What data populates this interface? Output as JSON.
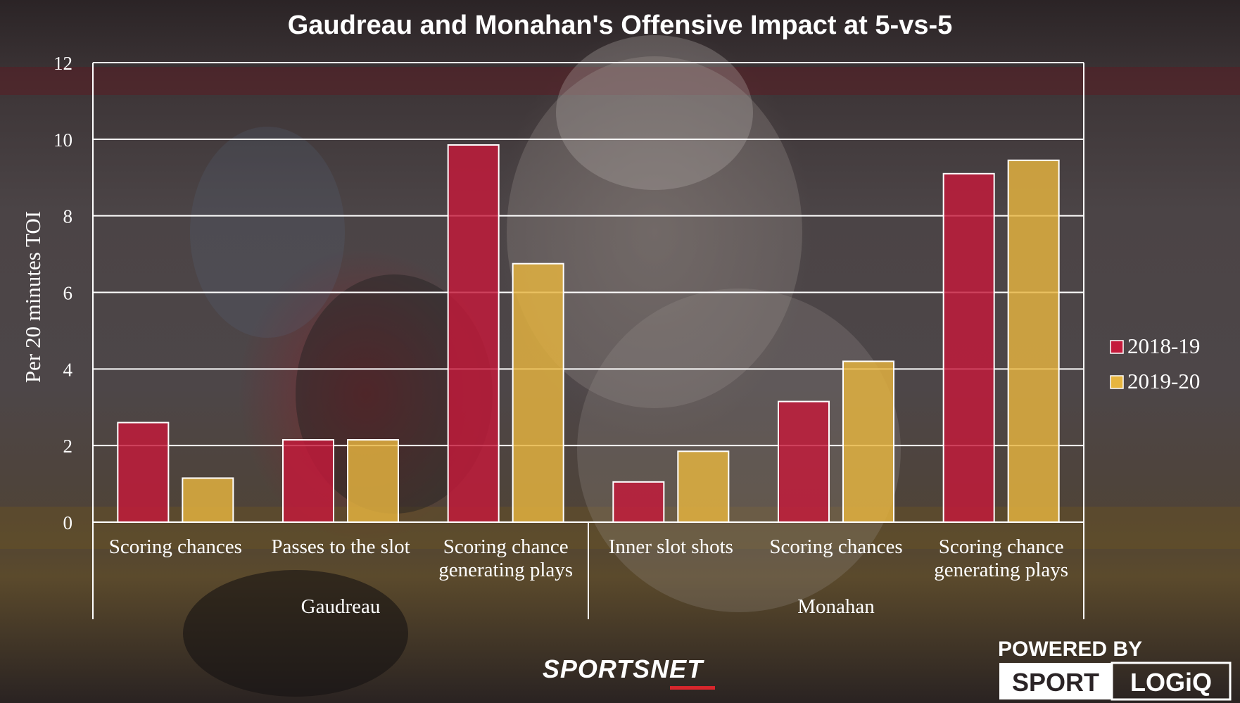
{
  "colors": {
    "series_2018": "#c41a3b",
    "series_2019": "#e7b53f",
    "grid": "#ffffff",
    "text": "#ffffff"
  },
  "branding": {
    "sportsnet": "SPORTSNET",
    "powered_by": "POWERED BY",
    "logo_left": "SPORT",
    "logo_right": "LOGiQ"
  },
  "chart_data": {
    "type": "bar",
    "title": "Gaudreau and Monahan's Offensive Impact at 5-vs-5",
    "ylabel": "Per 20 minutes TOI",
    "xlabel": "",
    "ylim": [
      0,
      12
    ],
    "yticks": [
      0,
      2,
      4,
      6,
      8,
      10,
      12
    ],
    "grid": true,
    "legend_position": "right",
    "categories": [
      [
        "Scoring chances"
      ],
      [
        "Passes to the slot"
      ],
      [
        "Scoring chance",
        "generating plays"
      ],
      [
        "Inner slot shots"
      ],
      [
        "Scoring chances"
      ],
      [
        "Scoring chance",
        "generating plays"
      ]
    ],
    "groups": [
      {
        "label": "Gaudreau",
        "count": 3
      },
      {
        "label": "Monahan",
        "count": 3
      }
    ],
    "series": [
      {
        "name": "2018-19",
        "values": [
          2.6,
          2.15,
          9.85,
          1.05,
          3.15,
          9.1
        ]
      },
      {
        "name": "2019-20",
        "values": [
          1.15,
          2.15,
          6.75,
          1.85,
          4.2,
          9.45
        ]
      }
    ]
  }
}
